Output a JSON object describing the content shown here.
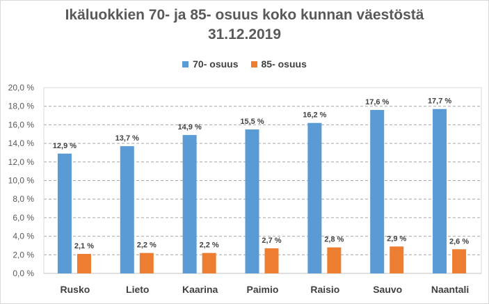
{
  "chart_data": {
    "type": "bar",
    "title_line1": "Ikäluokkien 70- ja 85- osuus koko kunnan väestöstä",
    "title_line2": "31.12.2019",
    "categories": [
      "Rusko",
      "Lieto",
      "Kaarina",
      "Paimio",
      "Raisio",
      "Sauvo",
      "Naantali"
    ],
    "series": [
      {
        "name": "70- osuus",
        "color": "#5b9bd5",
        "values": [
          12.9,
          13.7,
          14.9,
          15.5,
          16.2,
          17.6,
          17.7
        ],
        "labels": [
          "12,9 %",
          "13,7 %",
          "14,9 %",
          "15,5 %",
          "16,2 %",
          "17,6 %",
          "17,7 %"
        ]
      },
      {
        "name": "85- osuus",
        "color": "#ed7d31",
        "values": [
          2.1,
          2.2,
          2.2,
          2.7,
          2.8,
          2.9,
          2.6
        ],
        "labels": [
          "2,1 %",
          "2,2 %",
          "2,2 %",
          "2,7 %",
          "2,8 %",
          "2,9 %",
          "2,6 %"
        ]
      }
    ],
    "ylim": [
      0,
      20
    ],
    "yticks": [
      0,
      2,
      4,
      6,
      8,
      10,
      12,
      14,
      16,
      18,
      20
    ],
    "ytick_labels": [
      "0,0 %",
      "2,0 %",
      "4,0 %",
      "6,0 %",
      "8,0 %",
      "10,0 %",
      "12,0 %",
      "14,0 %",
      "16,0 %",
      "18,0 %",
      "20,0 %"
    ],
    "grid": true,
    "legend_position": "top-center",
    "xlabel": "",
    "ylabel": ""
  }
}
